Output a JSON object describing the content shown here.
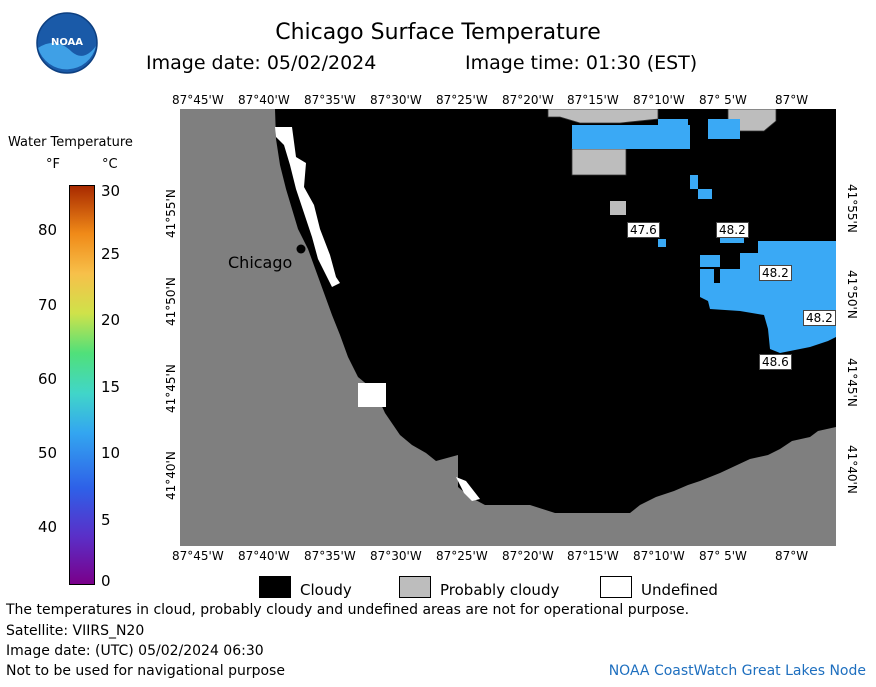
{
  "header": {
    "title": "Chicago Surface Temperature",
    "image_date": "Image date: 05/02/2024",
    "image_time": "Image time: 01:30 (EST)",
    "logo_text": "NOAA"
  },
  "colorbar": {
    "title": "Water Temperature",
    "unit_f": "°F",
    "unit_c": "°C",
    "f_ticks": [
      "80",
      "70",
      "60",
      "50",
      "40"
    ],
    "c_ticks": [
      "30",
      "25",
      "20",
      "15",
      "10",
      "5",
      "0"
    ]
  },
  "lon_labels": [
    "87°45'W",
    "87°40'W",
    "87°35'W",
    "87°30'W",
    "87°25'W",
    "87°20'W",
    "87°15'W",
    "87°10'W",
    "87° 5'W",
    "87°W"
  ],
  "lat_labels": [
    "41°55'N",
    "41°50'N",
    "41°45'N",
    "41°40'N"
  ],
  "map": {
    "city": "Chicago",
    "temps": [
      "47.6",
      "48.2",
      "48.2",
      "48.2",
      "48.6"
    ]
  },
  "legend": {
    "cloudy": "Cloudy",
    "probably_cloudy": "Probably cloudy",
    "undefined": "Undefined"
  },
  "footer": {
    "note": "The temperatures in cloud, probably cloudy and undefined areas are not for operational purpose.",
    "satellite": "Satellite: VIIRS_N20",
    "utc_date": "Image date: (UTC) 05/02/2024  06:30",
    "nav": "Not to be used for navigational purpose",
    "credit": "NOAA CoastWatch Great Lakes Node"
  },
  "colors": {
    "land": "#7f7f7f",
    "cloud": "#000000",
    "probably_cloudy": "#bdbdbd",
    "water": "#3aa9f5",
    "credit": "#1e6fbf"
  }
}
